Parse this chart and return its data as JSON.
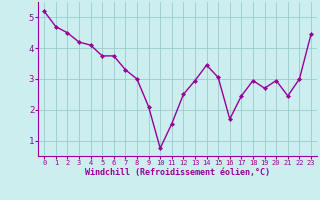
{
  "x": [
    0,
    1,
    2,
    3,
    4,
    5,
    6,
    7,
    8,
    9,
    10,
    11,
    12,
    13,
    14,
    15,
    16,
    17,
    18,
    19,
    20,
    21,
    22,
    23
  ],
  "y": [
    5.2,
    4.7,
    4.5,
    4.2,
    4.1,
    3.75,
    3.75,
    3.3,
    3.0,
    2.1,
    0.75,
    1.55,
    2.5,
    2.95,
    3.45,
    3.05,
    1.7,
    2.45,
    2.95,
    2.7,
    2.95,
    2.45,
    3.0,
    4.45
  ],
  "line_color": "#990099",
  "marker": "D",
  "marker_size": 2.0,
  "bg_color": "#cceeee",
  "grid_color": "#99cccc",
  "xlabel": "Windchill (Refroidissement éolien,°C)",
  "xlabel_color": "#990099",
  "tick_color": "#990099",
  "xlim": [
    -0.5,
    23.5
  ],
  "ylim": [
    0.5,
    5.5
  ],
  "yticks": [
    1,
    2,
    3,
    4,
    5
  ],
  "xticks": [
    0,
    1,
    2,
    3,
    4,
    5,
    6,
    7,
    8,
    9,
    10,
    11,
    12,
    13,
    14,
    15,
    16,
    17,
    18,
    19,
    20,
    21,
    22,
    23
  ],
  "line_width": 1.0,
  "spine_color": "#990099",
  "tick_fontsize": 5.0,
  "ytick_fontsize": 6.5,
  "xlabel_fontsize": 6.0
}
